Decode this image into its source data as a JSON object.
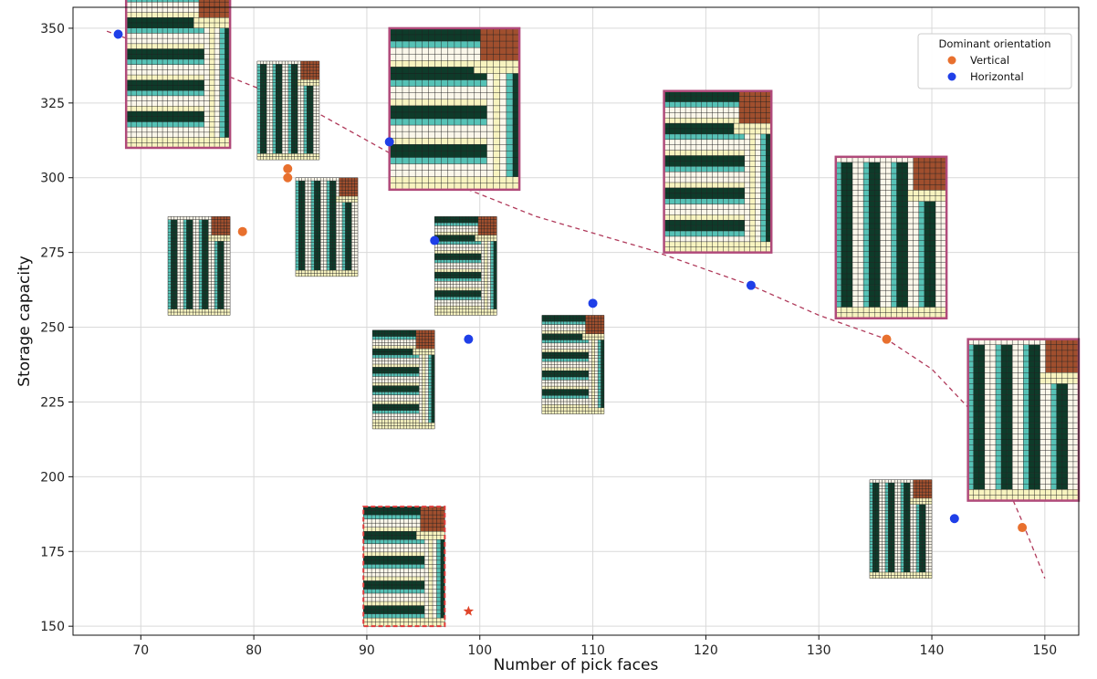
{
  "chart_data": {
    "type": "scatter",
    "title": "",
    "xlabel": "Number of pick faces",
    "ylabel": "Storage capacity",
    "xlim": [
      64,
      153
    ],
    "ylim": [
      147,
      357
    ],
    "xticks": [
      70,
      80,
      90,
      100,
      110,
      120,
      130,
      140,
      150
    ],
    "yticks": [
      150,
      175,
      200,
      225,
      250,
      275,
      300,
      325,
      350
    ],
    "grid": true,
    "legend": {
      "title": "Dominant orientation",
      "placement": "top-right",
      "entries": [
        {
          "label": "Vertical",
          "color": "#e8702e"
        },
        {
          "label": "Horizontal",
          "color": "#1f3fe8"
        }
      ]
    },
    "series": [
      {
        "name": "Vertical",
        "color": "#e8702e",
        "points": [
          {
            "x": 79,
            "y": 282
          },
          {
            "x": 83,
            "y": 303
          },
          {
            "x": 83,
            "y": 300
          },
          {
            "x": 136,
            "y": 246
          },
          {
            "x": 148,
            "y": 183
          }
        ]
      },
      {
        "name": "Horizontal",
        "color": "#1f3fe8",
        "points": [
          {
            "x": 68,
            "y": 348
          },
          {
            "x": 92,
            "y": 312
          },
          {
            "x": 96,
            "y": 279
          },
          {
            "x": 99,
            "y": 246
          },
          {
            "x": 110,
            "y": 258
          },
          {
            "x": 124,
            "y": 264
          },
          {
            "x": 142,
            "y": 186
          }
        ]
      }
    ],
    "reference_point": {
      "x": 99,
      "y": 155,
      "color": "#e0452a",
      "marker": "star"
    },
    "frontier": {
      "color": "#b03a5b",
      "style": "dashed",
      "points": [
        {
          "x": 67,
          "y": 349
        },
        {
          "x": 75,
          "y": 338
        },
        {
          "x": 85,
          "y": 323
        },
        {
          "x": 95,
          "y": 302
        },
        {
          "x": 105,
          "y": 287
        },
        {
          "x": 115,
          "y": 276
        },
        {
          "x": 124,
          "y": 264
        },
        {
          "x": 130,
          "y": 254
        },
        {
          "x": 136,
          "y": 246
        },
        {
          "x": 140,
          "y": 236
        },
        {
          "x": 144,
          "y": 220
        },
        {
          "x": 148,
          "y": 185
        },
        {
          "x": 150,
          "y": 166
        }
      ]
    },
    "layout_thumbnails": [
      {
        "x0": 68.7,
        "x1": 77.9,
        "y0": 310,
        "y1": 364,
        "style": "pareto",
        "variant": "h"
      },
      {
        "x0": 80.3,
        "x1": 85.8,
        "y0": 306,
        "y1": 339,
        "style": "plain",
        "variant": "v"
      },
      {
        "x0": 72.4,
        "x1": 77.9,
        "y0": 254,
        "y1": 287,
        "style": "plain",
        "variant": "v"
      },
      {
        "x0": 83.7,
        "x1": 89.2,
        "y0": 267,
        "y1": 300,
        "style": "plain",
        "variant": "v"
      },
      {
        "x0": 92.0,
        "x1": 103.5,
        "y0": 296,
        "y1": 350,
        "style": "pareto",
        "variant": "h"
      },
      {
        "x0": 96.0,
        "x1": 101.5,
        "y0": 254,
        "y1": 287,
        "style": "plain",
        "variant": "h"
      },
      {
        "x0": 90.5,
        "x1": 96.0,
        "y0": 216,
        "y1": 249,
        "style": "plain",
        "variant": "h"
      },
      {
        "x0": 105.5,
        "x1": 111.0,
        "y0": 221,
        "y1": 254,
        "style": "plain",
        "variant": "h"
      },
      {
        "x0": 116.3,
        "x1": 125.8,
        "y0": 275,
        "y1": 329,
        "style": "pareto",
        "variant": "h"
      },
      {
        "x0": 131.5,
        "x1": 141.3,
        "y0": 253,
        "y1": 307,
        "style": "pareto",
        "variant": "v"
      },
      {
        "x0": 143.2,
        "x1": 153.0,
        "y0": 192,
        "y1": 246,
        "style": "pareto",
        "variant": "v"
      },
      {
        "x0": 134.5,
        "x1": 140.0,
        "y0": 166,
        "y1": 199,
        "style": "plain",
        "variant": "v"
      },
      {
        "x0": 89.7,
        "x1": 96.9,
        "y0": 150,
        "y1": 190,
        "style": "dashed",
        "variant": "h"
      }
    ]
  }
}
